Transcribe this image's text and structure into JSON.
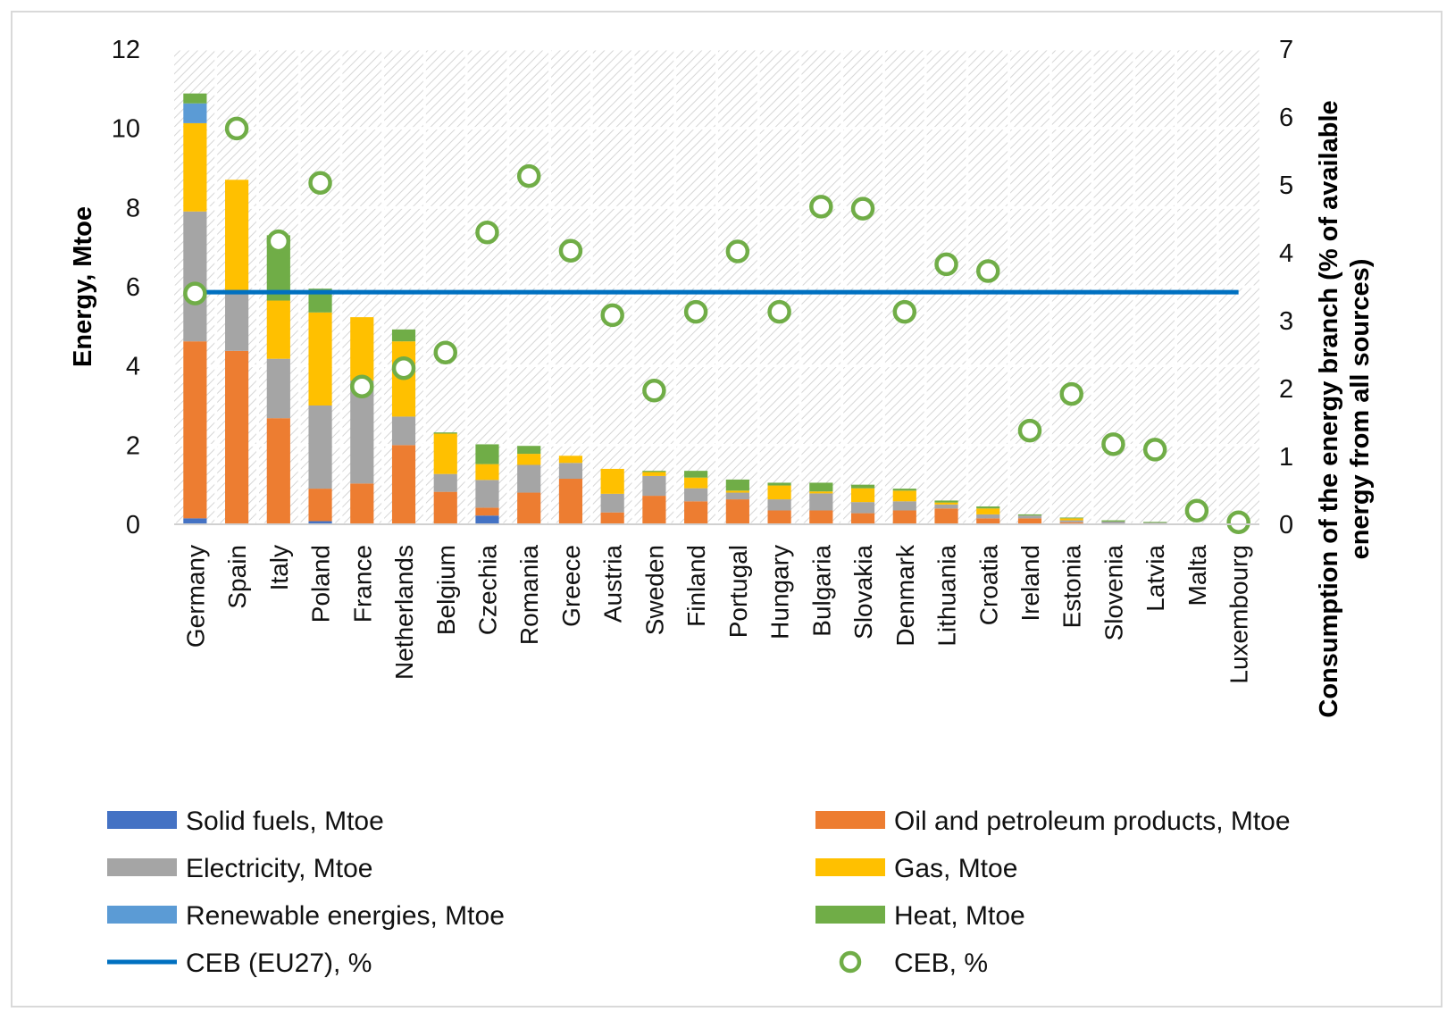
{
  "chart_data": {
    "type": "bar",
    "stacked": true,
    "title": "",
    "ylabel": "Energy, Mtoe",
    "y2label_line1": "Consumption of the energy branch (% of available",
    "y2label_line2": "energy from all sources)",
    "ylim": [
      0,
      12
    ],
    "y2lim": [
      0,
      7
    ],
    "yticks": [
      0,
      2,
      4,
      6,
      8,
      10,
      12
    ],
    "y2ticks": [
      0,
      1,
      2,
      3,
      4,
      5,
      6,
      7
    ],
    "grid": true,
    "legend_position": "bottom",
    "categories": [
      "Germany",
      "Spain",
      "Italy",
      "Poland",
      "France",
      "Netherlands",
      "Belgium",
      "Czechia",
      "Romania",
      "Greece",
      "Austria",
      "Sweden",
      "Finland",
      "Portugal",
      "Hungary",
      "Bulgaria",
      "Slovakia",
      "Denmark",
      "Lithuania",
      "Croatia",
      "Ireland",
      "Estonia",
      "Slovenia",
      "Latvia",
      "Malta",
      "Luxembourg"
    ],
    "series": [
      {
        "name": "Solid fuels, Mtoe",
        "color": "#4472c4",
        "values": [
          0.15,
          0,
          0,
          0.08,
          0,
          0,
          0,
          0.22,
          0,
          0,
          0,
          0,
          0,
          0,
          0,
          0,
          0,
          0,
          0,
          0,
          0,
          0,
          0,
          0,
          0,
          0
        ]
      },
      {
        "name": "Oil and petroleum products, Mtoe",
        "color": "#ed7d31",
        "values": [
          4.47,
          4.38,
          2.68,
          0.82,
          1.03,
          2.0,
          0.82,
          0.2,
          0.8,
          1.15,
          0.3,
          0.72,
          0.58,
          0.63,
          0.35,
          0.35,
          0.28,
          0.35,
          0.4,
          0.15,
          0.15,
          0.05,
          0.02,
          0.02,
          0,
          0
        ]
      },
      {
        "name": "Electricity, Mtoe",
        "color": "#a5a5a5",
        "values": [
          3.28,
          1.5,
          1.5,
          2.1,
          2.6,
          0.72,
          0.45,
          0.7,
          0.7,
          0.4,
          0.47,
          0.5,
          0.33,
          0.17,
          0.28,
          0.43,
          0.28,
          0.23,
          0.1,
          0.1,
          0.07,
          0.05,
          0.05,
          0.02,
          0,
          0
        ]
      },
      {
        "name": "Gas, Mtoe",
        "color": "#ffc000",
        "values": [
          2.23,
          2.82,
          1.47,
          2.35,
          1.6,
          1.9,
          1.02,
          0.4,
          0.28,
          0.18,
          0.63,
          0.1,
          0.27,
          0.05,
          0.35,
          0.05,
          0.35,
          0.27,
          0.05,
          0.15,
          0,
          0.05,
          0,
          0,
          0,
          0
        ]
      },
      {
        "name": "Renewable energies, Mtoe",
        "color": "#5b9bd5",
        "values": [
          0.5,
          0,
          0,
          0,
          0,
          0,
          0,
          0,
          0,
          0,
          0,
          0,
          0,
          0,
          0,
          0,
          0,
          0,
          0,
          0,
          0,
          0,
          0,
          0,
          0,
          0
        ]
      },
      {
        "name": "Heat, Mtoe",
        "color": "#70ad47",
        "values": [
          0.25,
          0,
          1.65,
          0.6,
          0,
          0.3,
          0.03,
          0.5,
          0.2,
          0,
          0,
          0.03,
          0.17,
          0.28,
          0.07,
          0.22,
          0.09,
          0.05,
          0.05,
          0.05,
          0.03,
          0.02,
          0.03,
          0.02,
          0,
          0
        ]
      }
    ],
    "line_series": {
      "name": "CEB (EU27), %",
      "color": "#0070c0",
      "value": 3.42
    },
    "marker_series": {
      "name": "CEB, %",
      "color": "#70ad47",
      "values": [
        3.4,
        5.83,
        4.17,
        5.03,
        2.03,
        2.3,
        2.53,
        4.3,
        5.13,
        4.03,
        3.08,
        1.97,
        3.13,
        4.02,
        3.13,
        4.68,
        4.65,
        3.13,
        3.83,
        3.73,
        1.38,
        1.92,
        1.18,
        1.1,
        0.2,
        0.03
      ]
    }
  }
}
